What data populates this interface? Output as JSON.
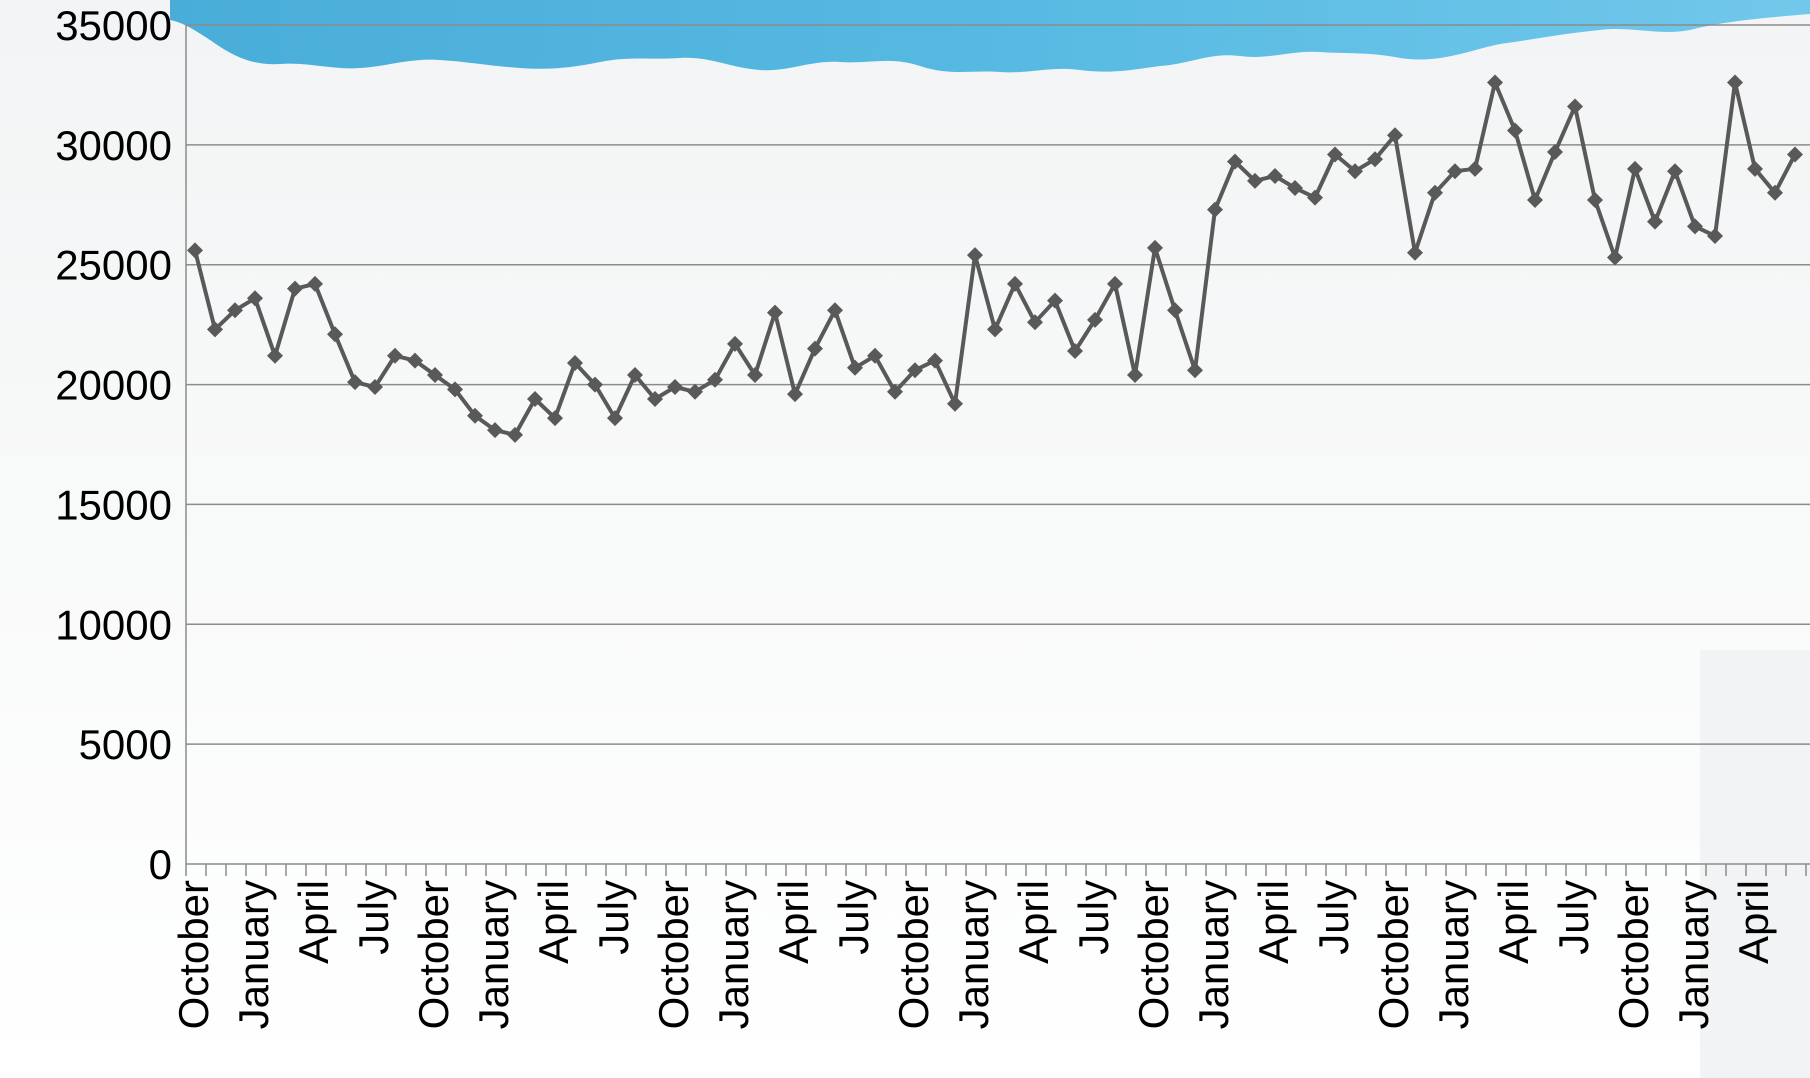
{
  "chart_data": {
    "type": "line",
    "title": "",
    "xlabel": "",
    "ylabel": "",
    "ylim": [
      0,
      35000
    ],
    "y_ticks": [
      0,
      5000,
      10000,
      15000,
      20000,
      25000,
      30000,
      35000
    ],
    "grid": "horizontal",
    "legend": "none",
    "line_color": "#595959",
    "marker": "diamond",
    "x_tick_labels": [
      {
        "index": 0,
        "label": "October"
      },
      {
        "index": 3,
        "label": "January"
      },
      {
        "index": 6,
        "label": "April"
      },
      {
        "index": 9,
        "label": "July"
      },
      {
        "index": 12,
        "label": "October"
      },
      {
        "index": 15,
        "label": "January"
      },
      {
        "index": 18,
        "label": "April"
      },
      {
        "index": 21,
        "label": "July"
      },
      {
        "index": 24,
        "label": "October"
      },
      {
        "index": 27,
        "label": "January"
      },
      {
        "index": 30,
        "label": "April"
      },
      {
        "index": 33,
        "label": "July"
      },
      {
        "index": 36,
        "label": "October"
      },
      {
        "index": 39,
        "label": "January"
      },
      {
        "index": 42,
        "label": "April"
      },
      {
        "index": 45,
        "label": "July"
      },
      {
        "index": 48,
        "label": "October"
      },
      {
        "index": 51,
        "label": "January"
      },
      {
        "index": 54,
        "label": "April"
      },
      {
        "index": 57,
        "label": "July"
      },
      {
        "index": 60,
        "label": "October"
      },
      {
        "index": 63,
        "label": "January"
      },
      {
        "index": 66,
        "label": "April"
      },
      {
        "index": 69,
        "label": "July"
      },
      {
        "index": 72,
        "label": "October"
      },
      {
        "index": 75,
        "label": "January"
      },
      {
        "index": 78,
        "label": "April"
      }
    ],
    "series": [
      {
        "values": [
          25600,
          22300,
          23100,
          23600,
          21200,
          24000,
          24200,
          22100,
          20100,
          19900,
          21200,
          21000,
          20400,
          19800,
          18700,
          18100,
          17900,
          19400,
          18600,
          20900,
          20000,
          18600,
          20400,
          19400,
          19900,
          19700,
          20200,
          21700,
          20400,
          23000,
          19600,
          21500,
          23100,
          20700,
          21200,
          19700,
          20600,
          21000,
          19200,
          25400,
          22300,
          24200,
          22600,
          23500,
          21400,
          22700,
          24200,
          20400,
          25700,
          23100,
          20600,
          27300,
          29300,
          28500,
          28700,
          28200,
          27800,
          29600,
          28900,
          29400,
          30400,
          25500,
          28000,
          28900,
          29000,
          32600,
          30600,
          27700,
          29700,
          31600,
          27700,
          25300,
          29000,
          26800,
          28900,
          26600,
          26200,
          32600,
          29000,
          28000,
          29600
        ]
      }
    ]
  }
}
